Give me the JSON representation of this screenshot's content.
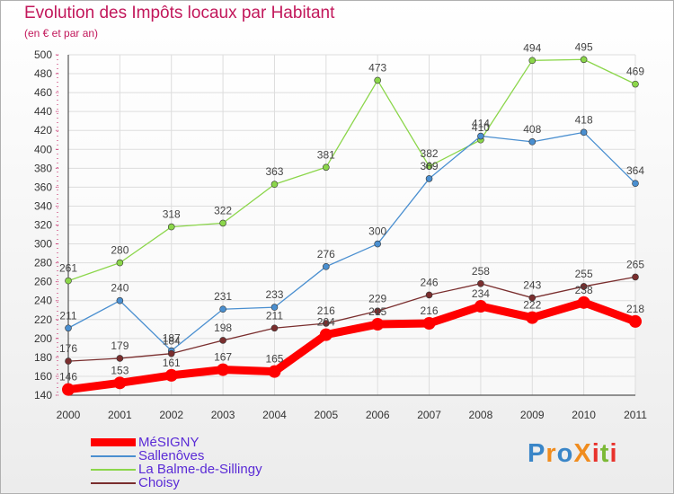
{
  "title": "Evolution des Impôts locaux par Habitant",
  "subtitle": "(en € et par an)",
  "brand": {
    "text": "ProXiti",
    "letter_colors": [
      "#3a86c8",
      "#f08c1e",
      "#3a86c8",
      "#f08c1e",
      "#e8322c",
      "#7cb936",
      "#e8322c"
    ]
  },
  "chart_data": {
    "type": "line",
    "x": [
      2000,
      2001,
      2002,
      2003,
      2004,
      2005,
      2006,
      2007,
      2008,
      2009,
      2010,
      2011
    ],
    "ylim": [
      140,
      500
    ],
    "yticks": [
      140,
      160,
      180,
      200,
      220,
      240,
      260,
      280,
      300,
      320,
      340,
      360,
      380,
      400,
      420,
      440,
      460,
      480,
      500
    ],
    "grid": true,
    "legend_position": "bottom-left",
    "series": [
      {
        "name": "MéSIGNY",
        "color": "#ff0000",
        "values": [
          146,
          153,
          161,
          167,
          165,
          204,
          215,
          216,
          234,
          222,
          238,
          218
        ]
      },
      {
        "name": "Sallenôves",
        "color": "#4a8fd0",
        "values": [
          211,
          240,
          187,
          231,
          233,
          276,
          300,
          369,
          414,
          408,
          418,
          364
        ]
      },
      {
        "name": "La Balme-de-Sillingy",
        "color": "#8bd64a",
        "values": [
          261,
          280,
          318,
          322,
          363,
          381,
          473,
          382,
          410,
          494,
          495,
          469
        ]
      },
      {
        "name": "Choisy",
        "color": "#7a2e2e",
        "values": [
          176,
          179,
          184,
          198,
          211,
          216,
          229,
          246,
          258,
          243,
          255,
          265
        ]
      }
    ]
  }
}
